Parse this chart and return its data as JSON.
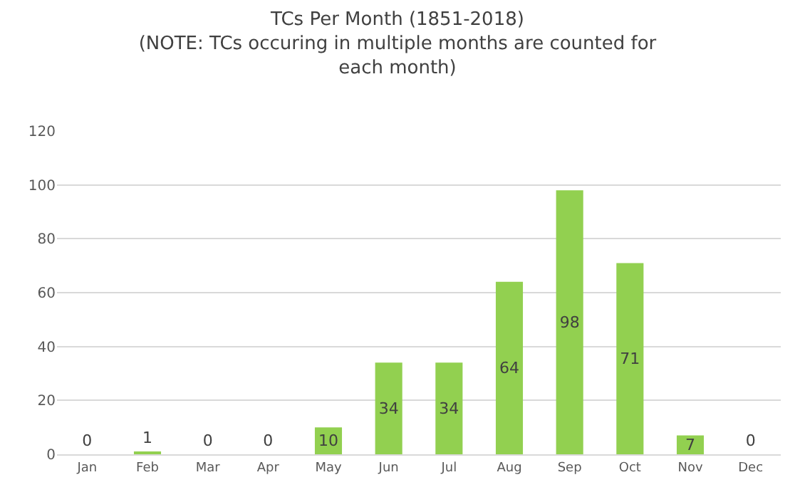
{
  "chart_data": {
    "type": "bar",
    "title": "TCs Per Month (1851-2018)",
    "subtitle": "(NOTE: TCs occuring in multiple months are counted for each month)",
    "categories": [
      "Jan",
      "Feb",
      "Mar",
      "Apr",
      "May",
      "Jun",
      "Jul",
      "Aug",
      "Sep",
      "Oct",
      "Nov",
      "Dec"
    ],
    "values": [
      0,
      1,
      0,
      0,
      10,
      34,
      34,
      64,
      98,
      71,
      7,
      0
    ],
    "color": "#92d050",
    "ylim": [
      0,
      120
    ],
    "yticks": [
      0,
      20,
      40,
      60,
      80,
      100,
      120
    ],
    "grid": "y",
    "data_labels": true
  }
}
